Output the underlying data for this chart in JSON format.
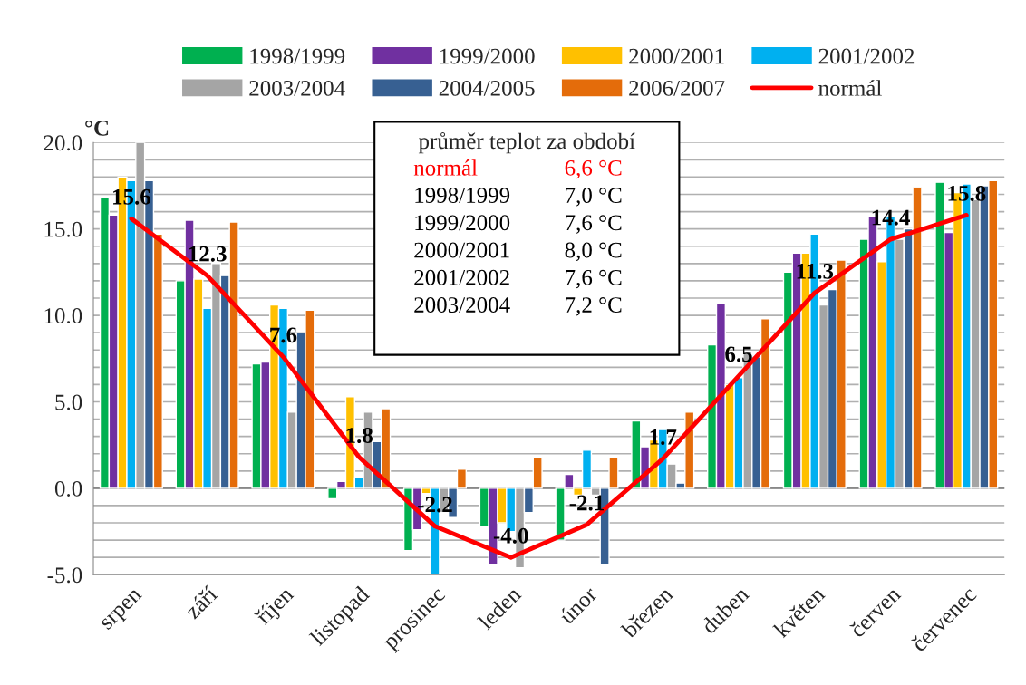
{
  "chart_data": {
    "type": "bar",
    "ylabel": "°C",
    "categories": [
      "srpen",
      "září",
      "říjen",
      "listopad",
      "prosinec",
      "leden",
      "únor",
      "březen",
      "duben",
      "květen",
      "červen",
      "červenec"
    ],
    "series": [
      {
        "name": "1998/1999",
        "color": "#00b050",
        "values": [
          16.8,
          12.0,
          7.2,
          -0.6,
          -3.6,
          -2.2,
          -3.0,
          3.9,
          8.3,
          12.5,
          14.4,
          17.7
        ]
      },
      {
        "name": "1999/2000",
        "color": "#7030a0",
        "values": [
          15.8,
          15.5,
          7.3,
          0.4,
          -2.4,
          -4.4,
          0.8,
          2.4,
          10.7,
          13.6,
          15.7,
          14.8
        ]
      },
      {
        "name": "2000/2001",
        "color": "#ffc000",
        "values": [
          18.0,
          12.1,
          10.6,
          5.3,
          -0.3,
          -2.0,
          -0.4,
          2.8,
          6.0,
          13.6,
          13.1,
          17.1
        ]
      },
      {
        "name": "2001/2002",
        "color": "#00b0f0",
        "values": [
          17.8,
          10.4,
          10.4,
          0.6,
          -5.0,
          -2.5,
          2.2,
          3.4,
          6.4,
          14.7,
          15.7,
          17.6
        ]
      },
      {
        "name": "2003/2004",
        "color": "#a5a5a5",
        "values": [
          20.0,
          13.0,
          4.4,
          4.4,
          -1.4,
          -4.6,
          -0.4,
          1.4,
          7.9,
          10.6,
          14.4,
          16.7
        ]
      },
      {
        "name": "2004/2005",
        "color": "#376092",
        "values": [
          17.8,
          12.3,
          9.0,
          2.7,
          -1.7,
          -1.4,
          -4.4,
          0.3,
          7.6,
          11.5,
          15.0,
          17.5
        ]
      },
      {
        "name": "2006/2007",
        "color": "#e46c0a",
        "values": [
          14.7,
          15.4,
          10.3,
          4.6,
          1.1,
          1.8,
          1.8,
          4.4,
          9.8,
          13.2,
          17.4,
          17.8
        ]
      },
      {
        "name": "normál",
        "type": "line",
        "color": "#ff0000",
        "values": [
          15.6,
          12.3,
          7.6,
          1.8,
          -2.2,
          -4.0,
          -2.1,
          1.7,
          6.5,
          11.3,
          14.4,
          15.8
        ],
        "value_labels": [
          "15.6",
          "12.3",
          "7.6",
          "1.8",
          "-2.2",
          "-4.0",
          "-2.1",
          "1.7",
          "6.5",
          "11.3",
          "14.4",
          "15.8"
        ]
      }
    ],
    "ylim": [
      -5,
      20
    ],
    "yticks": [
      {
        "value": -5,
        "label": "-5.0"
      },
      {
        "value": -4,
        "label": null
      },
      {
        "value": -3,
        "label": null
      },
      {
        "value": -2,
        "label": null
      },
      {
        "value": -1,
        "label": null
      },
      {
        "value": 0,
        "label": "0.0"
      },
      {
        "value": 1,
        "label": null
      },
      {
        "value": 2,
        "label": null
      },
      {
        "value": 3,
        "label": null
      },
      {
        "value": 4,
        "label": null
      },
      {
        "value": 5,
        "label": "5.0"
      },
      {
        "value": 6,
        "label": null
      },
      {
        "value": 7,
        "label": null
      },
      {
        "value": 8,
        "label": null
      },
      {
        "value": 9,
        "label": null
      },
      {
        "value": 10,
        "label": "10.0"
      },
      {
        "value": 11,
        "label": null
      },
      {
        "value": 12,
        "label": null
      },
      {
        "value": 13,
        "label": null
      },
      {
        "value": 14,
        "label": null
      },
      {
        "value": 15,
        "label": "15.0"
      },
      {
        "value": 16,
        "label": null
      },
      {
        "value": 17,
        "label": null
      },
      {
        "value": 18,
        "label": null
      },
      {
        "value": 19,
        "label": null
      },
      {
        "value": 20,
        "label": "20.0"
      }
    ],
    "grid": "y",
    "legend": "top",
    "annotations": [
      "průměr teplot za období",
      "normál",
      "6,6 °C",
      "1998/1999",
      "7,0 °C",
      "1999/2000",
      "7,6 °C",
      "2000/2001",
      "8,0 °C",
      "2001/2002",
      "7,6 °C",
      "2003/2004",
      "7,2 °C"
    ]
  }
}
